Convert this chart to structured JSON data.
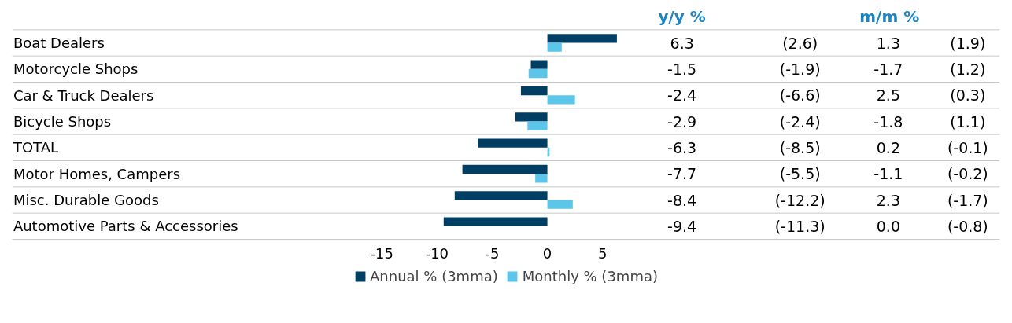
{
  "chart_data": {
    "type": "bar",
    "orientation": "horizontal",
    "categories": [
      "Boat Dealers",
      "Motorcycle Shops",
      "Car & Truck Dealers",
      "Bicycle Shops",
      "TOTAL",
      "Motor Homes, Campers",
      "Misc. Durable Goods",
      "Automotive Parts & Accessories"
    ],
    "series": [
      {
        "name": "Annual % (3mma)",
        "color": "#003f63",
        "values": [
          6.3,
          -1.5,
          -2.4,
          -2.9,
          -6.3,
          -7.7,
          -8.4,
          -9.4
        ]
      },
      {
        "name": "Monthly % (3mma)",
        "color": "#5bc6ea",
        "values": [
          1.3,
          -1.7,
          2.5,
          -1.8,
          0.2,
          -1.1,
          2.3,
          0.0
        ]
      }
    ],
    "annotations": [
      "y/y %",
      "m/m %",
      "6.3",
      "-1.5",
      "-2.4",
      "-2.9",
      "-6.3",
      "-7.7",
      "-8.4",
      "-9.4",
      "(2.6)",
      "(-1.9)",
      "(-6.6)",
      "(-2.4)",
      "(-8.5)",
      "(-5.5)",
      "(-12.2)",
      "(-11.3)",
      "1.3",
      "-1.7",
      "2.5",
      "-1.8",
      "0.2",
      "-1.1",
      "2.3",
      "0.0",
      "(1.9)",
      "(1.2)",
      "(0.3)",
      "(1.1)",
      "(-0.1)",
      "(-0.2)",
      "(-1.7)",
      "(-0.8)"
    ],
    "xlim": [
      -48.5,
      41
    ],
    "xticks": [
      -15,
      -10,
      -5,
      0,
      5
    ],
    "legend": "bottom"
  }
}
